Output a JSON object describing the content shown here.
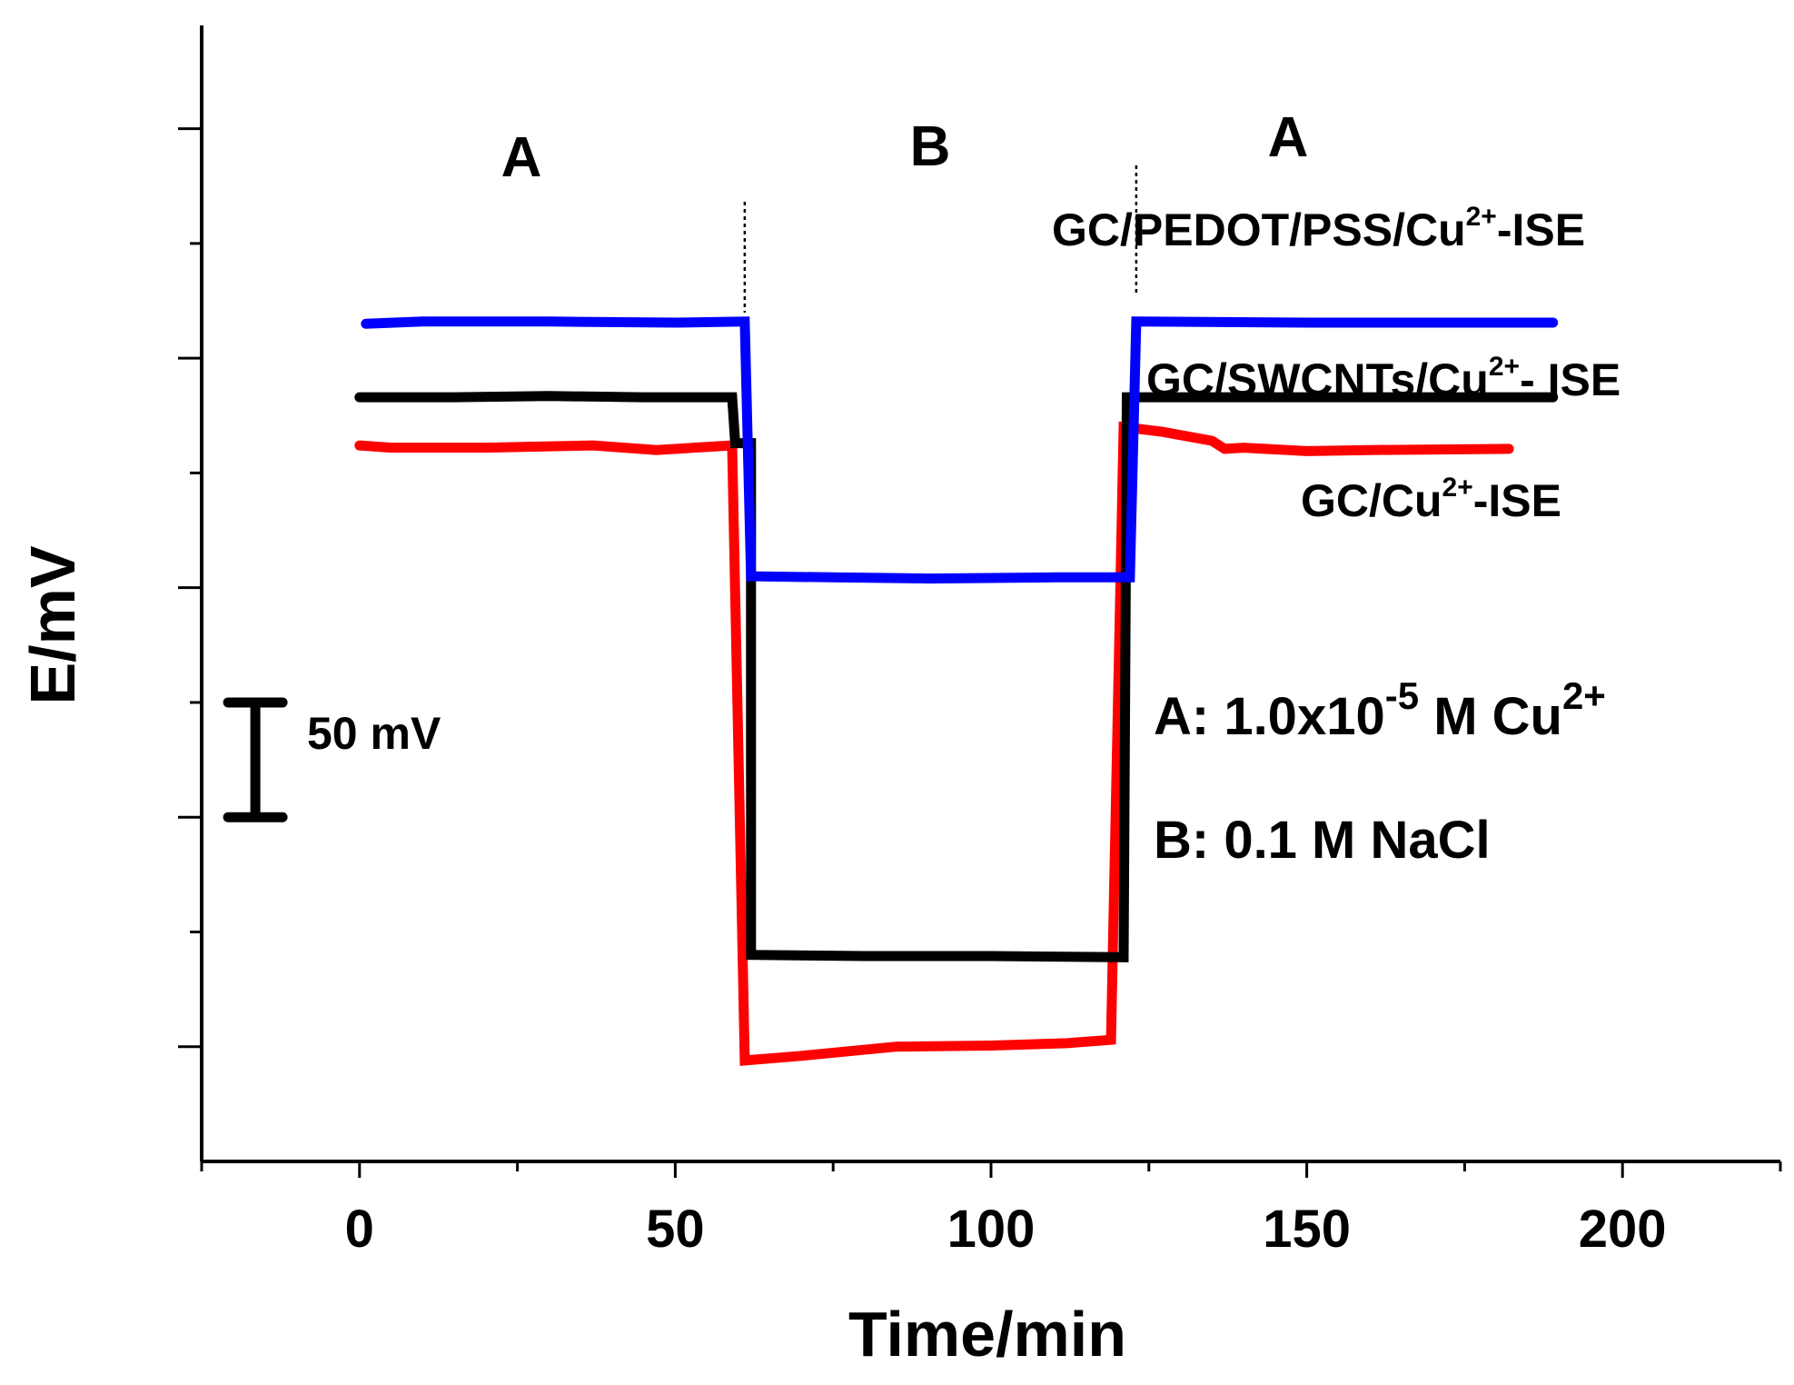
{
  "chart_data": {
    "type": "line",
    "xlabel": "Time/min",
    "ylabel": "E/mV",
    "xlim": [
      -25,
      225
    ],
    "ylim": [
      -200,
      295
    ],
    "x_ticks": [
      0,
      50,
      100,
      150,
      200
    ],
    "x_tick_labels": [
      "0",
      "50",
      "100",
      "150",
      "200"
    ],
    "x_minor_ticks": [
      -25,
      25,
      75,
      125,
      175,
      225
    ],
    "y_ticks": [
      -150,
      -100,
      -50,
      0,
      50,
      100,
      150,
      200,
      250
    ],
    "y_tick_labels_shown": false,
    "grid": false,
    "series": [
      {
        "name": "GC/PEDOT/PSS/Cu²⁺-ISE",
        "color": "#0000ff",
        "points": [
          [
            1,
            165
          ],
          [
            10,
            166
          ],
          [
            30,
            166
          ],
          [
            50,
            165.5
          ],
          [
            61,
            166
          ],
          [
            62,
            55
          ],
          [
            75,
            54.5
          ],
          [
            90,
            54
          ],
          [
            110,
            54.5
          ],
          [
            122,
            54.5
          ],
          [
            123,
            166
          ],
          [
            150,
            165.5
          ],
          [
            170,
            165.5
          ],
          [
            189,
            165.5
          ]
        ]
      },
      {
        "name": "GC/SWCNTs/Cu²⁺- ISE",
        "color": "#000000",
        "points": [
          [
            0,
            133
          ],
          [
            15,
            133
          ],
          [
            30,
            133.5
          ],
          [
            45,
            133
          ],
          [
            59,
            133
          ],
          [
            59.5,
            113
          ],
          [
            62,
            113
          ],
          [
            62,
            -110
          ],
          [
            80,
            -110.5
          ],
          [
            100,
            -110.5
          ],
          [
            121,
            -111
          ],
          [
            121.5,
            133
          ],
          [
            140,
            133
          ],
          [
            160,
            133
          ],
          [
            189,
            133
          ]
        ]
      },
      {
        "name": "GC/Cu²⁺-ISE",
        "color": "#ff0000",
        "points": [
          [
            0,
            112
          ],
          [
            5,
            111
          ],
          [
            20,
            111
          ],
          [
            37,
            112
          ],
          [
            47,
            110
          ],
          [
            56,
            111.5
          ],
          [
            59,
            112
          ],
          [
            61,
            -156
          ],
          [
            70,
            -154
          ],
          [
            85,
            -150
          ],
          [
            100,
            -149.5
          ],
          [
            112,
            -148.5
          ],
          [
            119,
            -147
          ],
          [
            121,
            120
          ],
          [
            127,
            118
          ],
          [
            135,
            114
          ],
          [
            137,
            110.5
          ],
          [
            140,
            111
          ],
          [
            150,
            109.5
          ],
          [
            160,
            110
          ],
          [
            182,
            110.5
          ]
        ]
      }
    ],
    "region_labels": [
      "A",
      "B",
      "A"
    ],
    "divider_times": [
      61,
      123
    ],
    "scale_bar": {
      "label": "50 mV",
      "value_mV": 50
    },
    "conditions": {
      "A": {
        "prefix": "A: 1.0x10",
        "exponent": "-5",
        "mid": " M Cu",
        "superscript": "2+"
      },
      "B": {
        "text": "B: 0.1 M NaCl"
      }
    }
  },
  "labels": {
    "series_1": {
      "base": "GC/PEDOT/PSS/Cu",
      "sup": "2+",
      "tail": "-ISE"
    },
    "series_2": {
      "base": "GC/SWCNTs/Cu",
      "sup": "2+",
      "tail": "- ISE"
    },
    "series_3": {
      "base": "GC/Cu",
      "sup": "2+",
      "tail": "-ISE"
    }
  },
  "colors": {
    "axis": "#000000",
    "blue": "#0000ff",
    "black": "#000000",
    "red": "#ff0000"
  }
}
